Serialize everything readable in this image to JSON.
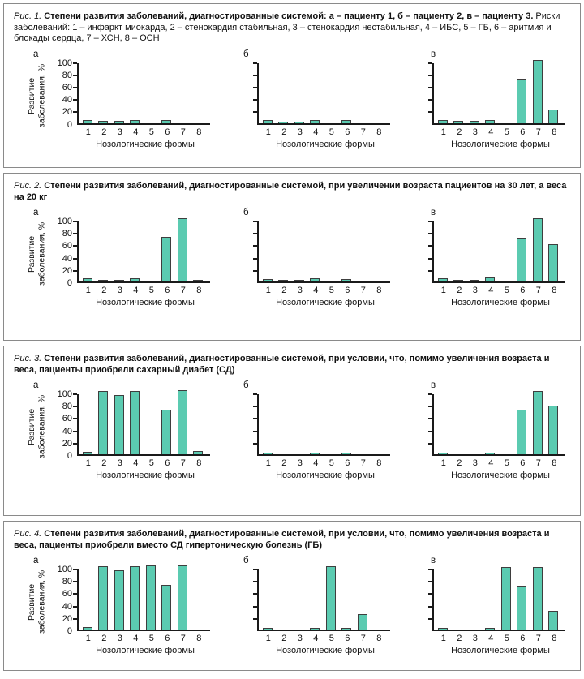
{
  "colors": {
    "bar_fill": "#5bcbb1",
    "bar_stroke": "#3e3e3e",
    "axis": "#1a1a1a",
    "panel_border": "#8a8a8a",
    "text": "#111111"
  },
  "figures": [
    {
      "caption": [
        {
          "style": "italic",
          "text": "Рис. 1. "
        },
        {
          "style": "bold",
          "text": "Степени развития заболеваний, диагностированные системой: а – пациенту 1, б – пациенту 2, в – пациенту 3."
        },
        {
          "style": "normal",
          "text": " Риски заболеваний: 1 – инфаркт миокарда, 2 – стенокардия стабильная, 3 – стенокардия нестабильная, 4 – ИБС, 5 – ГБ, 6 – аритмия и блокады сердца, 7 – ХСН, 8 – ОСН"
        }
      ]
    },
    {
      "caption": [
        {
          "style": "italic",
          "text": "Рис. 2. "
        },
        {
          "style": "bold",
          "text": "Степени развития заболеваний, диагностированные системой, при увеличении возраста пациентов на 30 лет, а веса на 20 кг"
        }
      ]
    },
    {
      "caption": [
        {
          "style": "italic",
          "text": "Рис. 3. "
        },
        {
          "style": "bold",
          "text": "Степени развития заболеваний, диагностированные системой, при условии, что, помимо увеличения возраста и веса, пациенты приобрели сахарный диабет (СД)"
        }
      ]
    },
    {
      "caption": [
        {
          "style": "italic",
          "text": "Рис. 4. "
        },
        {
          "style": "bold",
          "text": "Степени развития заболеваний, диагностированные системой, при условии, что, помимо увеличения возраста и веса, пациенты приобрели вместо СД гипертоническую болезнь (ГБ)"
        }
      ]
    }
  ],
  "chart_data": [
    {
      "type": "bar",
      "title": "Рис. 1. Степени развития заболеваний, диагностированные системой: а – пациенту 1, б – пациенту 2, в – пациенту 3.",
      "categories": [
        "1",
        "2",
        "3",
        "4",
        "5",
        "6",
        "7",
        "8"
      ],
      "xlabel": "Нозологические формы",
      "ylabel": "Развитие заболевания, %",
      "ylim": [
        0,
        100
      ],
      "yticks": [
        0,
        20,
        40,
        60,
        80,
        100
      ],
      "series": [
        {
          "name": "а",
          "values": [
            5,
            3,
            3,
            5,
            0,
            4,
            0,
            0
          ]
        },
        {
          "name": "б",
          "values": [
            4,
            2,
            2,
            4,
            0,
            4,
            0,
            0
          ]
        },
        {
          "name": "в",
          "values": [
            5,
            3,
            3,
            5,
            0,
            72,
            102,
            22
          ]
        }
      ]
    },
    {
      "type": "bar",
      "title": "Рис. 2. Степени развития заболеваний, диагностированные системой, при увеличении возраста пациентов на 30 лет, а веса на 20 кг",
      "categories": [
        "1",
        "2",
        "3",
        "4",
        "5",
        "6",
        "7",
        "8"
      ],
      "xlabel": "Нозологические формы",
      "ylabel": "Развитие заболевания, %",
      "ylim": [
        0,
        100
      ],
      "yticks": [
        0,
        20,
        40,
        60,
        80,
        100
      ],
      "series": [
        {
          "name": "а",
          "values": [
            5,
            2,
            2,
            5,
            0,
            73,
            103,
            2
          ]
        },
        {
          "name": "б",
          "values": [
            4,
            2,
            2,
            5,
            0,
            4,
            0,
            0
          ]
        },
        {
          "name": "в",
          "values": [
            5,
            3,
            3,
            6,
            0,
            71,
            102,
            61
          ]
        }
      ]
    },
    {
      "type": "bar",
      "title": "Рис. 3. Степени развития заболеваний, диагностированные системой, при условии, что, помимо увеличения возраста и веса, пациенты приобрели сахарный диабет (СД)",
      "categories": [
        "1",
        "2",
        "3",
        "4",
        "5",
        "6",
        "7",
        "8"
      ],
      "xlabel": "Нозологические формы",
      "ylabel": "Развитие заболевания, %",
      "ylim": [
        0,
        100
      ],
      "yticks": [
        0,
        20,
        40,
        60,
        80,
        100
      ],
      "series": [
        {
          "name": "а",
          "values": [
            4,
            102,
            96,
            102,
            0,
            73,
            104,
            5
          ]
        },
        {
          "name": "б",
          "values": [
            2,
            0,
            0,
            2,
            0,
            2,
            0,
            0
          ]
        },
        {
          "name": "в",
          "values": [
            3,
            0,
            0,
            3,
            0,
            72,
            102,
            79
          ]
        }
      ]
    },
    {
      "type": "bar",
      "title": "Рис. 4. Степени развития заболеваний, диагностированные системой, при условии, что, помимо увеличения возраста и веса, пациенты приобрели вместо СД гипертоническую болезнь (ГБ)",
      "categories": [
        "1",
        "2",
        "3",
        "4",
        "5",
        "6",
        "7",
        "8"
      ],
      "xlabel": "Нозологические формы",
      "ylabel": "Развитие заболевания, %",
      "ylim": [
        0,
        100
      ],
      "yticks": [
        0,
        20,
        40,
        60,
        80,
        100
      ],
      "series": [
        {
          "name": "а",
          "values": [
            4,
            102,
            96,
            102,
            104,
            73,
            104,
            0
          ]
        },
        {
          "name": "б",
          "values": [
            3,
            0,
            0,
            3,
            103,
            3,
            25,
            0
          ]
        },
        {
          "name": "в",
          "values": [
            3,
            0,
            0,
            2,
            101,
            71,
            101,
            30
          ]
        }
      ]
    }
  ]
}
